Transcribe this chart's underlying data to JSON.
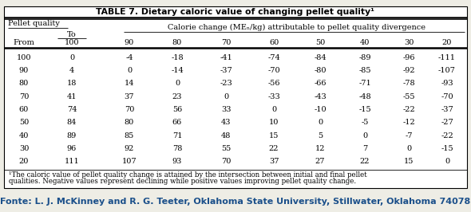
{
  "title": "TABLE 7. Dietary caloric value of changing pellet quality¹",
  "pellet_quality_label": "Pellet quality",
  "header_to": "To",
  "header_calorie": "Calorie change (MEₙ/kg) attributable to pellet quality divergence",
  "col_headers": [
    "From",
    "100",
    "90",
    "80",
    "70",
    "60",
    "50",
    "40",
    "30",
    "20"
  ],
  "rows": [
    [
      "100",
      "0",
      "-4",
      "-18",
      "-41",
      "-74",
      "-84",
      "-89",
      "-96",
      "-111"
    ],
    [
      "90",
      "4",
      "0",
      "-14",
      "-37",
      "-70",
      "-80",
      "-85",
      "-92",
      "-107"
    ],
    [
      "80",
      "18",
      "14",
      "0",
      "-23",
      "-56",
      "-66",
      "-71",
      "-78",
      "-93"
    ],
    [
      "70",
      "41",
      "37",
      "23",
      "0",
      "-33",
      "-43",
      "-48",
      "-55",
      "-70"
    ],
    [
      "60",
      "74",
      "70",
      "56",
      "33",
      "0",
      "-10",
      "-15",
      "-22",
      "-37"
    ],
    [
      "50",
      "84",
      "80",
      "66",
      "43",
      "10",
      "0",
      "-5",
      "-12",
      "-27"
    ],
    [
      "40",
      "89",
      "85",
      "71",
      "48",
      "15",
      "5",
      "0",
      "-7",
      "-22"
    ],
    [
      "30",
      "96",
      "92",
      "78",
      "55",
      "22",
      "12",
      "7",
      "0",
      "-15"
    ],
    [
      "20",
      "111",
      "107",
      "93",
      "70",
      "37",
      "27",
      "22",
      "15",
      "0"
    ]
  ],
  "footnote_line1": "¹The caloric value of pellet quality change is attained by the intersection between initial and final pellet",
  "footnote_line2": "qualities. Negative values represent declining while positive values improving pellet quality change.",
  "source": "Fonte: L. J. McKinney and R. G. Teeter, Oklahoma State University, Stillwater, Oklahoma 74078",
  "bg_color": "#eeede5",
  "table_bg": "#ffffff",
  "source_color": "#1a4f8a",
  "font_size": 7.0,
  "title_font_size": 7.8
}
